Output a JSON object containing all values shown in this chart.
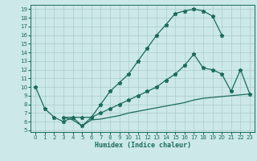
{
  "xlabel": "Humidex (Indice chaleur)",
  "bg_color": "#cce8e8",
  "grid_color": "#aacccc",
  "line_color": "#1a6b5a",
  "xlim": [
    -0.5,
    23.5
  ],
  "ylim": [
    4.8,
    19.5
  ],
  "xticks": [
    0,
    1,
    2,
    3,
    4,
    5,
    6,
    7,
    8,
    9,
    10,
    11,
    12,
    13,
    14,
    15,
    16,
    17,
    18,
    19,
    20,
    21,
    22,
    23
  ],
  "yticks": [
    5,
    6,
    7,
    8,
    9,
    10,
    11,
    12,
    13,
    14,
    15,
    16,
    17,
    18,
    19
  ],
  "curve1_x": [
    0,
    1,
    2,
    3,
    4,
    5,
    6,
    7,
    8,
    9,
    10,
    11,
    12,
    13,
    14,
    15,
    16,
    17,
    18,
    19,
    20
  ],
  "curve1_y": [
    10,
    7.5,
    6.5,
    6.0,
    6.5,
    5.5,
    6.5,
    8.0,
    9.5,
    10.5,
    11.5,
    13.0,
    14.5,
    16.0,
    17.2,
    18.5,
    18.8,
    19.0,
    18.8,
    18.2,
    16.0
  ],
  "curve2_x": [
    3,
    4,
    5,
    6,
    7,
    8,
    9,
    10,
    11,
    12,
    13,
    14,
    15,
    16,
    17,
    18,
    19,
    20,
    21,
    22,
    23
  ],
  "curve2_y": [
    6.5,
    6.5,
    6.5,
    6.5,
    7.0,
    7.5,
    8.0,
    8.5,
    9.0,
    9.5,
    10.0,
    10.8,
    11.5,
    12.5,
    13.8,
    12.2,
    12.0,
    11.5,
    9.5,
    12.0,
    9.2
  ],
  "curve3_x": [
    3,
    4,
    5,
    6,
    7,
    8,
    9,
    10,
    11,
    12,
    13,
    14,
    15,
    16,
    17,
    18,
    19,
    20,
    21,
    22,
    23
  ],
  "curve3_y": [
    6.5,
    6.2,
    5.5,
    6.2,
    6.3,
    6.5,
    6.7,
    7.0,
    7.2,
    7.4,
    7.6,
    7.8,
    8.0,
    8.2,
    8.5,
    8.7,
    8.8,
    8.9,
    9.0,
    9.1,
    9.2
  ]
}
